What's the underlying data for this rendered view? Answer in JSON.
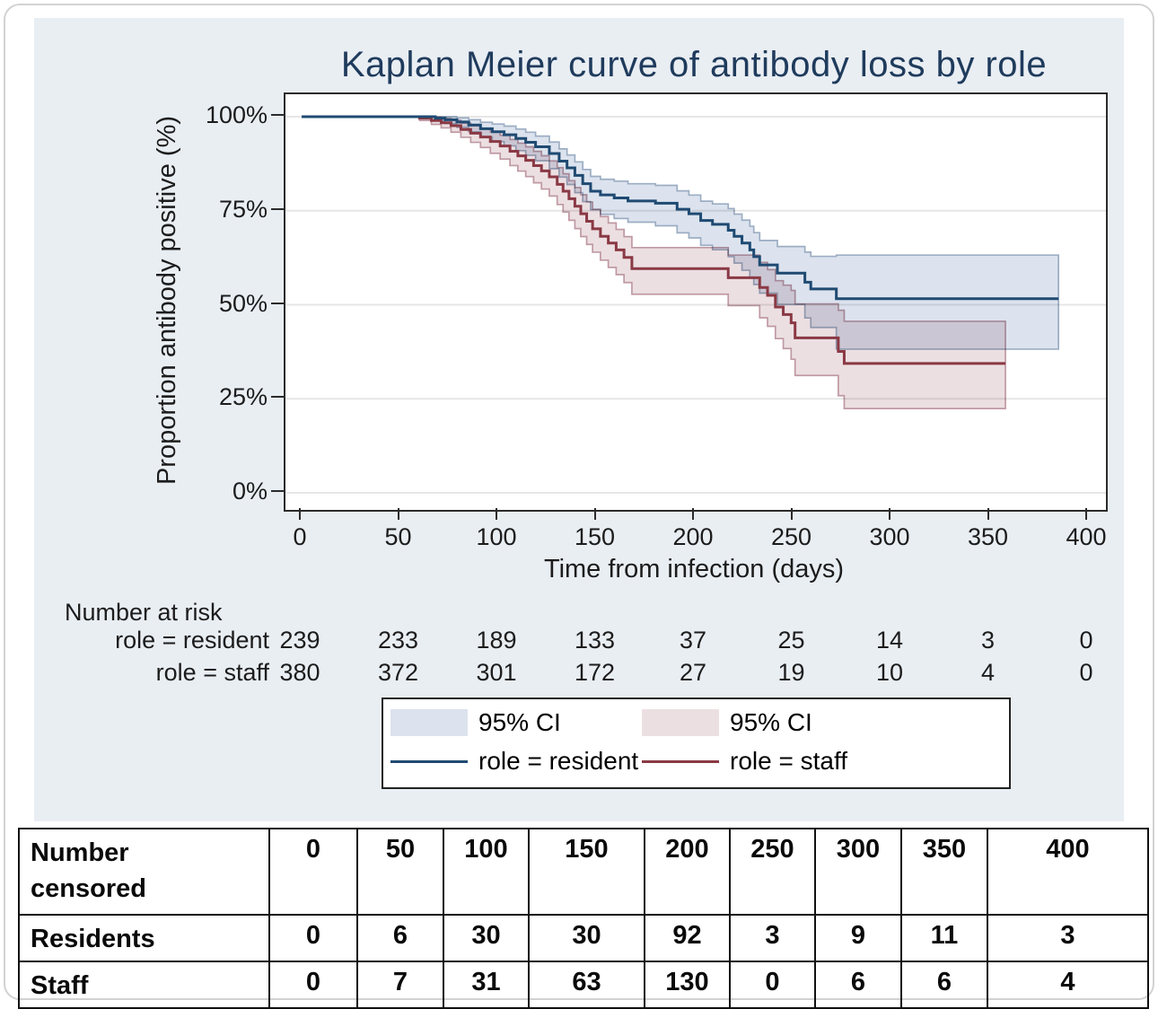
{
  "title": "Kaplan Meier curve of antibody loss by role",
  "axes": {
    "y_label": "Proportion antibody positive (%)",
    "x_label": "Time from infection (days)",
    "y_ticks": [
      {
        "label": "100%",
        "pct": 100
      },
      {
        "label": "75%",
        "pct": 75
      },
      {
        "label": "50%",
        "pct": 50
      },
      {
        "label": "25%",
        "pct": 25
      },
      {
        "label": "0%",
        "pct": 0
      }
    ],
    "x_ticks": [
      0,
      50,
      100,
      150,
      200,
      250,
      300,
      350,
      400
    ]
  },
  "risk_table": {
    "title": "Number at risk",
    "tick_days": [
      0,
      50,
      100,
      150,
      200,
      250,
      300,
      350,
      400
    ],
    "rows": [
      {
        "label": "role = resident",
        "values": [
          239,
          233,
          189,
          133,
          37,
          25,
          14,
          3,
          0
        ]
      },
      {
        "label": "role = staff",
        "values": [
          380,
          372,
          301,
          172,
          27,
          19,
          10,
          4,
          0
        ]
      }
    ]
  },
  "legend": {
    "items": [
      {
        "label": "95% CI",
        "type": "ci",
        "series": "resident"
      },
      {
        "label": "95% CI",
        "type": "ci",
        "series": "staff"
      },
      {
        "label": "role = resident",
        "type": "line",
        "series": "resident"
      },
      {
        "label": "role = staff",
        "type": "line",
        "series": "staff"
      }
    ]
  },
  "censored_table": {
    "row_header": "Number\ncensored",
    "columns": [
      "0",
      "50",
      "100",
      "150",
      "200",
      "250",
      "300",
      "350",
      "400"
    ],
    "rows": [
      {
        "label": "Residents",
        "values": [
          0,
          6,
          30,
          30,
          92,
          3,
          9,
          11,
          3
        ]
      },
      {
        "label": "Staff",
        "values": [
          0,
          7,
          31,
          63,
          130,
          0,
          6,
          6,
          4
        ]
      }
    ]
  },
  "colors": {
    "figure_bg": "#e9eef3",
    "plot_bg": "#ffffff",
    "title_text": "#1f3b5c",
    "axis_text": "#1c1c1c",
    "grid_line": "#e6e6e6",
    "axis_line": "#2b2b2b",
    "resident_line": "#1f4a72",
    "resident_ci_fill": "#dce3ee",
    "resident_ci_edge": "#9cadc3",
    "staff_line": "#8a3944",
    "staff_ci_fill": "#ecdfe2",
    "staff_ci_edge": "#bf99a3",
    "table_border": "#111111"
  },
  "chart_data": {
    "type": "line",
    "subtype": "kaplan-meier-step",
    "title": "Kaplan Meier curve of antibody loss by role",
    "xlabel": "Time from infection (days)",
    "ylabel": "Proportion antibody positive (%)",
    "xlim": [
      0,
      400
    ],
    "ylim": [
      0,
      100
    ],
    "grid": true,
    "legend_position": "bottom",
    "x_ticks": [
      0,
      50,
      100,
      150,
      200,
      250,
      300,
      350,
      400
    ],
    "y_tick_pcts": [
      0,
      25,
      50,
      75,
      100
    ],
    "series": [
      {
        "name": "role = resident",
        "end_day": 385,
        "steps": [
          [
            0,
            100
          ],
          [
            68,
            99.6
          ],
          [
            73,
            99.2
          ],
          [
            79,
            98.6
          ],
          [
            85,
            97.8
          ],
          [
            91,
            96.8
          ],
          [
            97,
            96.0
          ],
          [
            103,
            95.2
          ],
          [
            109,
            94.2
          ],
          [
            114,
            93.2
          ],
          [
            119,
            92.0
          ],
          [
            126,
            90.2
          ],
          [
            131,
            88.2
          ],
          [
            135,
            86.4
          ],
          [
            139,
            84.4
          ],
          [
            143,
            82.2
          ],
          [
            147,
            80.2
          ],
          [
            152,
            79.2
          ],
          [
            159,
            78.4
          ],
          [
            166,
            77.6
          ],
          [
            180,
            77.0
          ],
          [
            191,
            75.4
          ],
          [
            197,
            74.2
          ],
          [
            203,
            72.4
          ],
          [
            209,
            71.4
          ],
          [
            217,
            69.8
          ],
          [
            220,
            68.2
          ],
          [
            224,
            66.4
          ],
          [
            228,
            64.6
          ],
          [
            230,
            62.8
          ],
          [
            233,
            60.6
          ],
          [
            242,
            58.4
          ],
          [
            256,
            56.0
          ],
          [
            259,
            54.2
          ],
          [
            272,
            51.6
          ]
        ],
        "ci_upper_delta": [
          [
            68,
            0.5
          ],
          [
            100,
            2.2
          ],
          [
            130,
            3.2
          ],
          [
            160,
            4.5
          ],
          [
            200,
            5.0
          ],
          [
            233,
            6.5
          ],
          [
            256,
            8.0
          ],
          [
            272,
            11.6
          ],
          [
            385,
            11.6
          ]
        ],
        "ci_lower_delta": [
          [
            68,
            0.7
          ],
          [
            100,
            2.8
          ],
          [
            130,
            4.2
          ],
          [
            160,
            5.5
          ],
          [
            200,
            6.5
          ],
          [
            233,
            7.5
          ],
          [
            256,
            9.5
          ],
          [
            272,
            13.4
          ],
          [
            385,
            13.4
          ]
        ]
      },
      {
        "name": "role = staff",
        "end_day": 358,
        "steps": [
          [
            0,
            100
          ],
          [
            60,
            99.6
          ],
          [
            66,
            99.0
          ],
          [
            71,
            98.4
          ],
          [
            76,
            97.6
          ],
          [
            81,
            96.6
          ],
          [
            86,
            95.6
          ],
          [
            91,
            94.6
          ],
          [
            96,
            93.4
          ],
          [
            101,
            92.2
          ],
          [
            106,
            90.8
          ],
          [
            110,
            89.6
          ],
          [
            114,
            88.4
          ],
          [
            118,
            87.0
          ],
          [
            122,
            85.6
          ],
          [
            126,
            84.0
          ],
          [
            130,
            82.0
          ],
          [
            133,
            80.2
          ],
          [
            136,
            78.2
          ],
          [
            139,
            76.2
          ],
          [
            142,
            74.2
          ],
          [
            145,
            72.2
          ],
          [
            148,
            70.2
          ],
          [
            152,
            68.2
          ],
          [
            156,
            66.4
          ],
          [
            160,
            64.6
          ],
          [
            164,
            62.6
          ],
          [
            168,
            59.6
          ],
          [
            217,
            57.2
          ],
          [
            233,
            54.6
          ],
          [
            237,
            52.5
          ],
          [
            241,
            49.4
          ],
          [
            245,
            47.4
          ],
          [
            249,
            45.2
          ],
          [
            251,
            41.2
          ],
          [
            273,
            37.6
          ],
          [
            276,
            34.4
          ]
        ],
        "ci_upper_delta": [
          [
            60,
            0.5
          ],
          [
            100,
            2.8
          ],
          [
            140,
            5.0
          ],
          [
            168,
            5.6
          ],
          [
            217,
            6.0
          ],
          [
            241,
            7.0
          ],
          [
            251,
            9.0
          ],
          [
            276,
            11.2
          ],
          [
            358,
            11.2
          ]
        ],
        "ci_lower_delta": [
          [
            60,
            0.6
          ],
          [
            100,
            3.4
          ],
          [
            140,
            6.0
          ],
          [
            168,
            6.8
          ],
          [
            217,
            7.4
          ],
          [
            241,
            8.4
          ],
          [
            251,
            10.0
          ],
          [
            276,
            12.0
          ],
          [
            358,
            12.0
          ]
        ]
      }
    ]
  }
}
